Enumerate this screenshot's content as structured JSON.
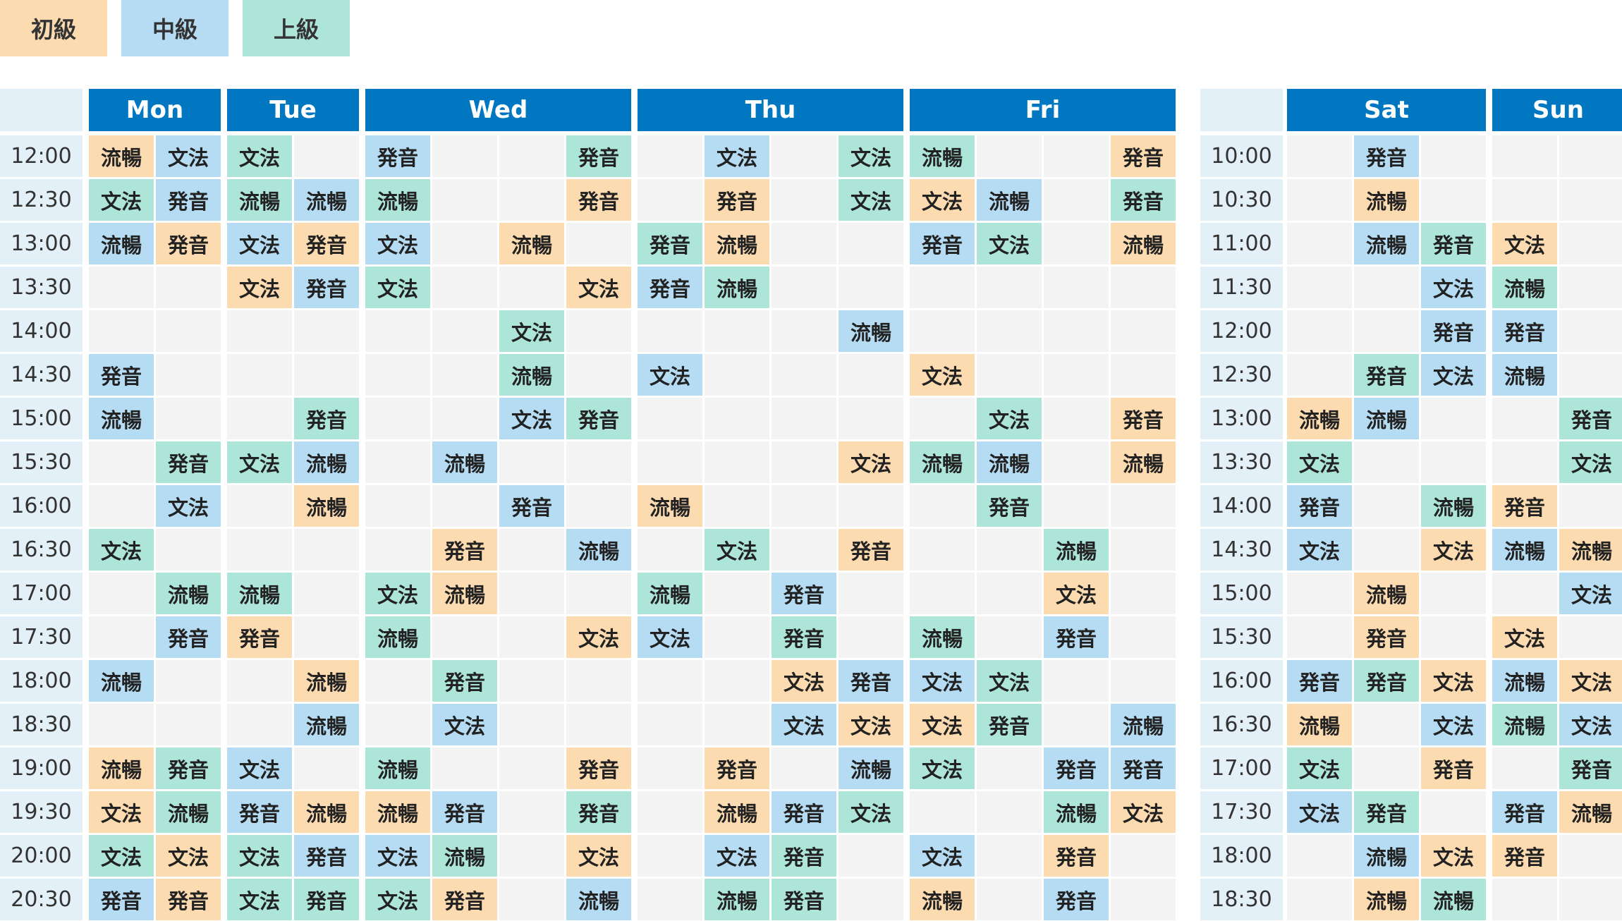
{
  "legend": [
    {
      "label": "初級",
      "color": "#FDDBB0"
    },
    {
      "label": "中級",
      "color": "#B5DCF3"
    },
    {
      "label": "上級",
      "color": "#ADE5D9"
    }
  ],
  "cell_colors": {
    "empty": "#F3F3F3"
  },
  "weekday": {
    "days": [
      {
        "label": "Mon",
        "cols": 2
      },
      {
        "label": "Tue",
        "cols": 2
      },
      {
        "label": "Wed",
        "cols": 4
      },
      {
        "label": "Thu",
        "cols": 4
      },
      {
        "label": "Fri",
        "cols": 4
      }
    ],
    "times": [
      "12:00",
      "12:30",
      "13:00",
      "13:30",
      "14:00",
      "14:30",
      "15:00",
      "15:30",
      "16:00",
      "16:30",
      "17:00",
      "17:30",
      "18:00",
      "18:30",
      "19:00",
      "19:30",
      "20:00",
      "20:30"
    ],
    "rows": [
      [
        "A流暢",
        "B文法",
        "C文法",
        "",
        "B発音",
        "",
        "",
        "C発音",
        "",
        "B文法",
        "",
        "C文法",
        "C流暢",
        "",
        "",
        "A発音"
      ],
      [
        "C文法",
        "B発音",
        "C流暢",
        "B流暢",
        "C流暢",
        "",
        "",
        "A発音",
        "",
        "A発音",
        "",
        "C文法",
        "A文法",
        "B流暢",
        "",
        "C発音"
      ],
      [
        "B流暢",
        "A発音",
        "B文法",
        "A発音",
        "B文法",
        "",
        "A流暢",
        "",
        "C発音",
        "A流暢",
        "",
        "",
        "B発音",
        "C文法",
        "",
        "A流暢"
      ],
      [
        "",
        "",
        "A文法",
        "B発音",
        "C文法",
        "",
        "",
        "A文法",
        "B発音",
        "C流暢",
        "",
        "",
        "",
        "",
        "",
        ""
      ],
      [
        "",
        "",
        "",
        "",
        "",
        "",
        "C文法",
        "",
        "",
        "",
        "",
        "B流暢",
        "",
        "",
        "",
        ""
      ],
      [
        "B発音",
        "",
        "",
        "",
        "",
        "",
        "C流暢",
        "",
        "B文法",
        "",
        "",
        "",
        "A文法",
        "",
        "",
        ""
      ],
      [
        "B流暢",
        "",
        "",
        "C発音",
        "",
        "",
        "B文法",
        "C発音",
        "",
        "",
        "",
        "",
        "",
        "C文法",
        "",
        "A発音"
      ],
      [
        "",
        "C発音",
        "C文法",
        "B流暢",
        "",
        "B流暢",
        "",
        "",
        "",
        "",
        "",
        "A文法",
        "C流暢",
        "B流暢",
        "",
        "A流暢"
      ],
      [
        "",
        "B文法",
        "",
        "A流暢",
        "",
        "",
        "B発音",
        "",
        "A流暢",
        "",
        "",
        "",
        "",
        "C発音",
        "",
        ""
      ],
      [
        "C文法",
        "",
        "",
        "",
        "",
        "A発音",
        "",
        "B流暢",
        "",
        "C文法",
        "",
        "A発音",
        "",
        "",
        "C流暢",
        ""
      ],
      [
        "",
        "C流暢",
        "C流暢",
        "",
        "C文法",
        "A流暢",
        "",
        "",
        "C流暢",
        "",
        "B発音",
        "",
        "",
        "",
        "A文法",
        ""
      ],
      [
        "",
        "B発音",
        "A発音",
        "",
        "C流暢",
        "",
        "",
        "A文法",
        "B文法",
        "",
        "C発音",
        "",
        "C流暢",
        "",
        "B発音",
        ""
      ],
      [
        "B流暢",
        "",
        "",
        "A流暢",
        "",
        "C発音",
        "",
        "",
        "",
        "",
        "A文法",
        "B発音",
        "B文法",
        "C文法",
        "",
        ""
      ],
      [
        "",
        "",
        "",
        "B流暢",
        "",
        "B文法",
        "",
        "",
        "",
        "",
        "B文法",
        "A文法",
        "A文法",
        "C発音",
        "",
        "B流暢"
      ],
      [
        "A流暢",
        "C発音",
        "B文法",
        "",
        "C流暢",
        "",
        "",
        "A発音",
        "",
        "A発音",
        "",
        "B流暢",
        "C文法",
        "",
        "B発音",
        "B発音"
      ],
      [
        "A文法",
        "C流暢",
        "B発音",
        "A流暢",
        "A流暢",
        "B発音",
        "",
        "C発音",
        "",
        "A流暢",
        "B発音",
        "C文法",
        "",
        "",
        "C流暢",
        "A文法"
      ],
      [
        "C文法",
        "A文法",
        "C文法",
        "B発音",
        "B文法",
        "C流暢",
        "",
        "A文法",
        "",
        "B文法",
        "C発音",
        "",
        "B文法",
        "",
        "A発音",
        ""
      ],
      [
        "B発音",
        "A発音",
        "C文法",
        "C発音",
        "C文法",
        "A発音",
        "",
        "B流暢",
        "",
        "C流暢",
        "C発音",
        "",
        "A流暢",
        "",
        "B発音",
        ""
      ]
    ]
  },
  "weekend": {
    "days": [
      {
        "label": "Sat",
        "cols": 3
      },
      {
        "label": "Sun",
        "cols": 2
      }
    ],
    "times": [
      "10:00",
      "10:30",
      "11:00",
      "11:30",
      "12:00",
      "12:30",
      "13:00",
      "13:30",
      "14:00",
      "14:30",
      "15:00",
      "15:30",
      "16:00",
      "16:30",
      "17:00",
      "17:30",
      "18:00",
      "18:30"
    ],
    "rows": [
      [
        "",
        "B発音",
        "",
        "",
        ""
      ],
      [
        "",
        "A流暢",
        "",
        "",
        ""
      ],
      [
        "",
        "B流暢",
        "C発音",
        "A文法",
        ""
      ],
      [
        "",
        "",
        "B文法",
        "C流暢",
        ""
      ],
      [
        "",
        "",
        "B発音",
        "B発音",
        ""
      ],
      [
        "",
        "C発音",
        "B文法",
        "B流暢",
        ""
      ],
      [
        "A流暢",
        "B流暢",
        "",
        "",
        "C発音"
      ],
      [
        "C文法",
        "",
        "",
        "",
        "C文法"
      ],
      [
        "B発音",
        "",
        "C流暢",
        "A発音",
        ""
      ],
      [
        "B文法",
        "",
        "A文法",
        "B流暢",
        "A流暢"
      ],
      [
        "",
        "A流暢",
        "",
        "",
        "B文法"
      ],
      [
        "",
        "A発音",
        "",
        "A文法",
        ""
      ],
      [
        "B発音",
        "C発音",
        "A文法",
        "B流暢",
        "A文法"
      ],
      [
        "A流暢",
        "",
        "B文法",
        "C流暢",
        "B文法"
      ],
      [
        "C文法",
        "",
        "A発音",
        "",
        "C発音"
      ],
      [
        "B文法",
        "C発音",
        "",
        "B発音",
        "A流暢"
      ],
      [
        "",
        "B流暢",
        "A文法",
        "A発音",
        ""
      ],
      [
        "",
        "A流暢",
        "C流暢",
        "",
        ""
      ]
    ]
  }
}
